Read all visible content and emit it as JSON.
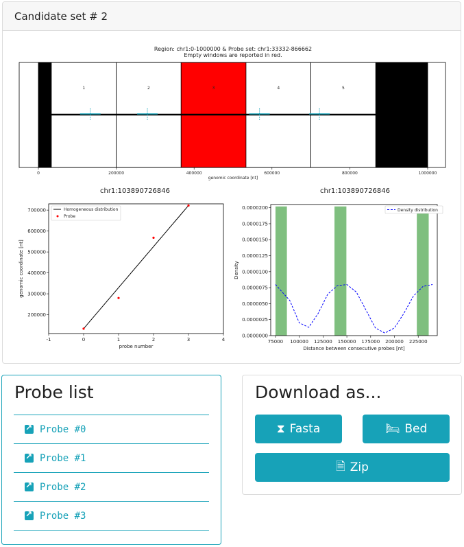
{
  "card": {
    "title": "Candidate set # 2"
  },
  "figure": {
    "top_title": "Region: chr1:0-1000000 & Probe set: chr1:33332-866662",
    "top_subtitle": "Empty windows are reported in red.",
    "top_xlabel": "genomic coordinate [nt]",
    "top_xticks": [
      "0",
      "200000",
      "400000",
      "600000",
      "800000",
      "1000000"
    ],
    "window_labels": [
      "1",
      "2",
      "3",
      "4",
      "5"
    ],
    "windows": [
      {
        "start": 0,
        "end": 33332,
        "fill": "black"
      },
      {
        "start": 33332,
        "end": 200000,
        "fill": "white"
      },
      {
        "start": 200000,
        "end": 366664,
        "fill": "white"
      },
      {
        "start": 366664,
        "end": 533330,
        "fill": "red"
      },
      {
        "start": 533330,
        "end": 700000,
        "fill": "white"
      },
      {
        "start": 700000,
        "end": 866662,
        "fill": "white"
      },
      {
        "start": 866662,
        "end": 1000000,
        "fill": "black"
      }
    ],
    "left_caption": "chr1:103890726846",
    "right_caption": "chr1:103890726846",
    "colors": {
      "accent": "#17a2b8",
      "empty_window": "#ff0000",
      "density": "#0000ff",
      "histogram": "#7fbf7f"
    }
  },
  "chart_data": [
    {
      "type": "scatter",
      "xlabel": "probe number",
      "ylabel": "genomic coordinate [nt]",
      "xlim": [
        -1,
        4
      ],
      "ylim": [
        110000,
        730000
      ],
      "xticks": [
        "-1",
        "0",
        "1",
        "2",
        "3",
        "4"
      ],
      "yticks": [
        "200000",
        "300000",
        "400000",
        "500000",
        "600000",
        "700000"
      ],
      "legend": [
        "Homogeneous distribution",
        "Probe"
      ],
      "legend_position": "upper-left",
      "line": {
        "x": [
          0,
          3
        ],
        "y": [
          133332,
          722000
        ]
      },
      "points": {
        "x": [
          0,
          1,
          2,
          3
        ],
        "y": [
          133332,
          280000,
          568000,
          722000
        ]
      }
    },
    {
      "type": "bar",
      "xlabel": "Distance between consecutive probes [nt]",
      "ylabel": "Density",
      "xlim": [
        70000,
        245000
      ],
      "ylim": [
        0,
        2.05e-05
      ],
      "xticks": [
        "75000",
        "100000",
        "125000",
        "150000",
        "175000",
        "200000",
        "225000"
      ],
      "yticks": [
        "0.0000000",
        "0.0000025",
        "0.0000050",
        "0.0000075",
        "0.0000100",
        "0.0000125",
        "0.0000150",
        "0.0000175",
        "0.0000200"
      ],
      "legend": [
        "Density distribution"
      ],
      "legend_position": "upper-right",
      "bins": [
        {
          "start": 75000,
          "end": 87000,
          "value": 2.02e-05
        },
        {
          "start": 137000,
          "end": 149500,
          "value": 2.02e-05
        },
        {
          "start": 223500,
          "end": 236000,
          "value": 1.98e-05
        }
      ],
      "density": {
        "x": [
          75000,
          90000,
          100000,
          110000,
          120000,
          130000,
          140000,
          150000,
          160000,
          170000,
          180000,
          190000,
          200000,
          210000,
          220000,
          230000,
          240000
        ],
        "y": [
          8e-06,
          5.5e-06,
          2e-06,
          1.3e-06,
          3.5e-06,
          6.5e-06,
          7.8e-06,
          8e-06,
          6.8e-06,
          4e-06,
          1.2e-06,
          4e-07,
          1.2e-06,
          3.5e-06,
          6.2e-06,
          7.7e-06,
          8e-06
        ]
      }
    }
  ],
  "probe_list": {
    "heading": "Probe list",
    "items": [
      "Probe #0",
      "Probe #1",
      "Probe #2",
      "Probe #3"
    ]
  },
  "download": {
    "heading": "Download as...",
    "fasta_label": "Fasta",
    "bed_label": "Bed",
    "zip_label": "Zip"
  }
}
